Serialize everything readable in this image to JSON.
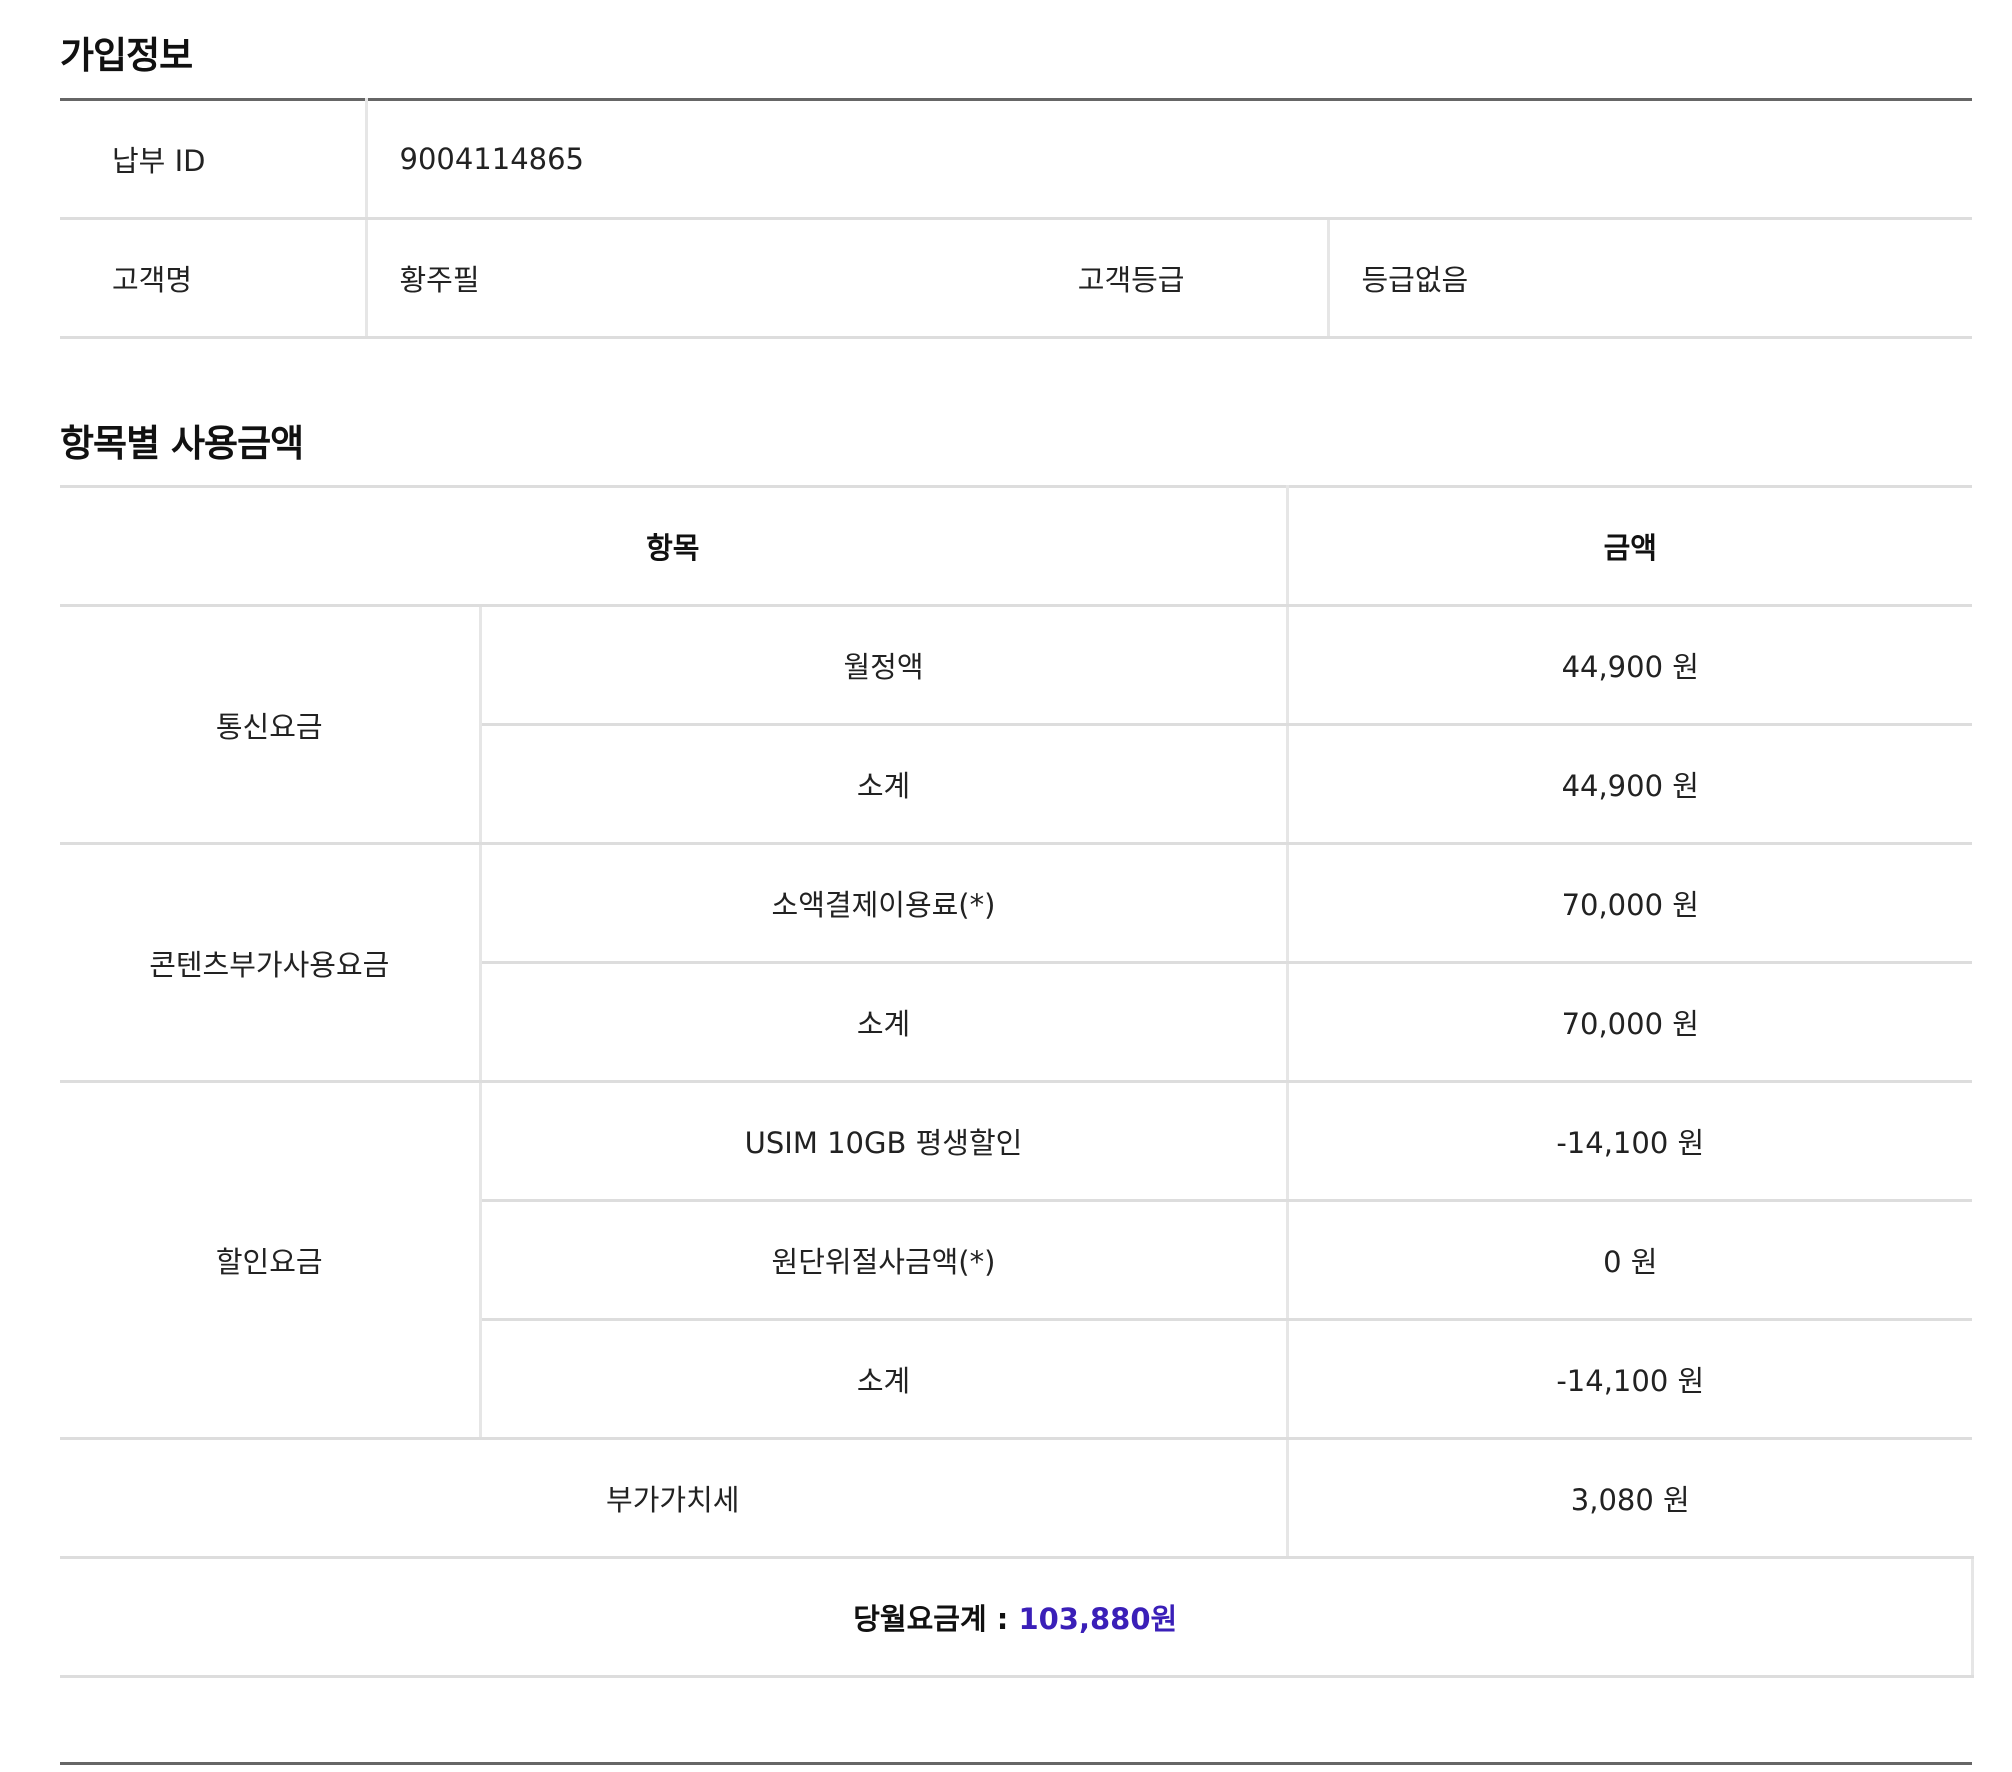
{
  "subscription": {
    "title": "가입정보",
    "payment_id_label": "납부 ID",
    "payment_id_value": "9004114865",
    "customer_name_label": "고객명",
    "customer_name_value": "황주필",
    "customer_grade_label": "고객등급",
    "customer_grade_value": "등급없음"
  },
  "usage": {
    "title": "항목별 사용금액",
    "header_item": "항목",
    "header_amount": "금액",
    "groups": [
      {
        "name": "통신요금",
        "rows": [
          {
            "item": "월정액",
            "amount": "44,900 원"
          },
          {
            "item": "소계",
            "amount": "44,900 원"
          }
        ]
      },
      {
        "name": "콘텐츠부가사용요금",
        "rows": [
          {
            "item": "소액결제이용료(*)",
            "amount": "70,000 원"
          },
          {
            "item": "소계",
            "amount": "70,000 원"
          }
        ]
      },
      {
        "name": "할인요금",
        "rows": [
          {
            "item": "USIM 10GB 평생할인",
            "amount": "-14,100 원"
          },
          {
            "item": "원단위절사금액(*)",
            "amount": "0 원"
          },
          {
            "item": "소계",
            "amount": "-14,100 원"
          }
        ]
      }
    ],
    "vat_label": "부가가치세",
    "vat_amount": "3,080 원",
    "total_label": "당월요금계 : ",
    "total_value": "103,880원"
  }
}
